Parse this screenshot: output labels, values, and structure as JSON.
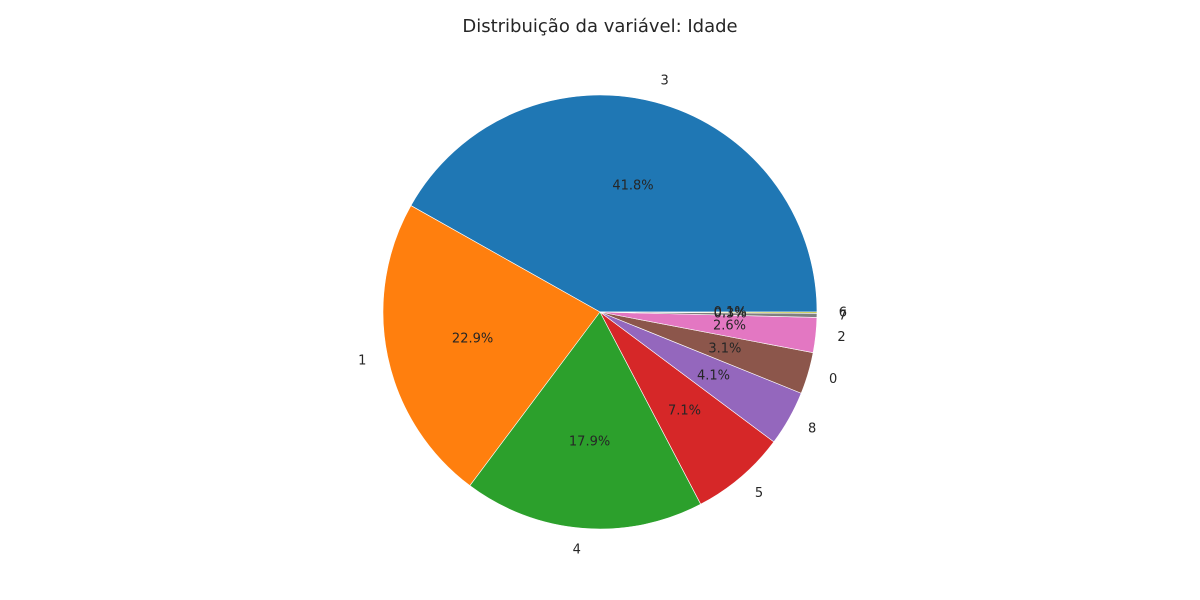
{
  "chart_data": {
    "type": "pie",
    "title": "Distribuição da variável: Idade",
    "labels": [
      "3",
      "1",
      "4",
      "5",
      "8",
      "0",
      "2",
      "7",
      "6"
    ],
    "values": [
      41.8,
      22.9,
      17.9,
      7.1,
      4.1,
      3.1,
      2.6,
      0.3,
      0.1
    ],
    "display_values": [
      "41.8%",
      "22.9%",
      "17.9%",
      "7.1%",
      "4.1%",
      "3.1%",
      "2.6%",
      "0.3%",
      "0.1%"
    ],
    "colors": [
      "#1f77b4",
      "#ff7f0e",
      "#2ca02c",
      "#d62728",
      "#9467bd",
      "#8c564b",
      "#e377c2",
      "#7f7f7f",
      "#bcbd22"
    ],
    "start_angle_deg": 0,
    "direction": "counterclockwise"
  }
}
